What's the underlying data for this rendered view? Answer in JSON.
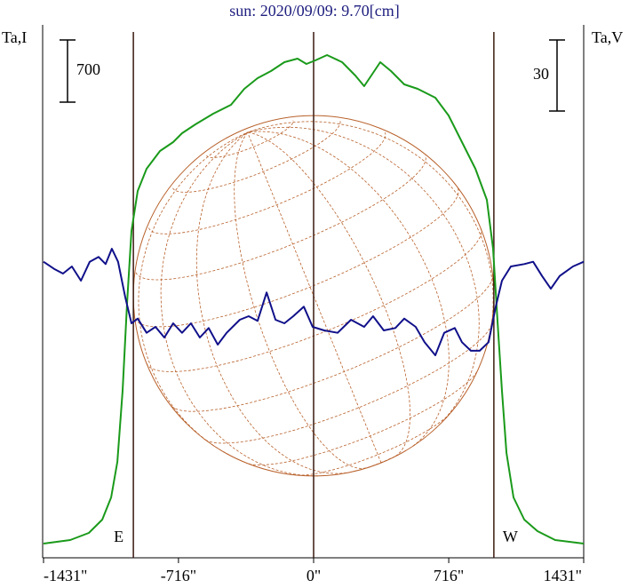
{
  "chart_data": {
    "type": "line",
    "title": "sun: 2020/09/09: 9.70[cm]",
    "xlim": [
      -1431,
      1431
    ],
    "xticks": [
      {
        "value": -1431,
        "label": "-1431\""
      },
      {
        "value": -716,
        "label": "-716\""
      },
      {
        "value": 0,
        "label": "0\""
      },
      {
        "value": 716,
        "label": "716\""
      },
      {
        "value": 1431,
        "label": "1431\""
      }
    ],
    "ylim": [
      0,
      6000
    ],
    "y2lim": [
      -100,
      125
    ],
    "scale_bars": [
      {
        "value": 700,
        "axis": "y"
      },
      {
        "value": 30,
        "axis": "y2"
      }
    ],
    "vlines": [
      -955,
      0,
      955
    ],
    "limb_labels": [
      "E",
      "W"
    ],
    "series": [
      {
        "name": "Ta,I",
        "color": "#1a9a1a",
        "axis": "y",
        "x": [
          -1431,
          -1290,
          -1191,
          -1120,
          -1073,
          -1040,
          -1012,
          -988,
          -965,
          -932,
          -885,
          -814,
          -744,
          -697,
          -626,
          -532,
          -438,
          -367,
          -297,
          -226,
          -155,
          -85,
          -38,
          9,
          71,
          151,
          221,
          268,
          353,
          410,
          480,
          551,
          645,
          715,
          786,
          857,
          918,
          951,
          974,
          998,
          1022,
          1059,
          1116,
          1186,
          1280,
          1431
        ],
        "values": [
          160,
          200,
          280,
          430,
          680,
          1080,
          1880,
          2880,
          3680,
          4130,
          4380,
          4580,
          4680,
          4780,
          4880,
          5000,
          5100,
          5280,
          5400,
          5480,
          5580,
          5620,
          5560,
          5600,
          5660,
          5580,
          5430,
          5310,
          5580,
          5480,
          5330,
          5280,
          5180,
          4980,
          4680,
          4380,
          4030,
          3480,
          2680,
          1880,
          1180,
          680,
          430,
          300,
          200,
          160
        ]
      },
      {
        "name": "Ta,V",
        "color": "#10108a",
        "axis": "y2",
        "x": [
          -1431,
          -1375,
          -1328,
          -1281,
          -1233,
          -1186,
          -1139,
          -1102,
          -1069,
          -1036,
          -998,
          -965,
          -932,
          -885,
          -838,
          -791,
          -744,
          -697,
          -650,
          -603,
          -556,
          -508,
          -461,
          -391,
          -344,
          -297,
          -249,
          -202,
          -155,
          -108,
          -52,
          -5,
          56,
          127,
          198,
          268,
          315,
          372,
          433,
          480,
          541,
          588,
          645,
          692,
          748,
          786,
          833,
          880,
          927,
          965,
          998,
          1045,
          1116,
          1163,
          1210,
          1257,
          1304,
          1374,
          1431
        ],
        "values": [
          25,
          22,
          20,
          23,
          17,
          25,
          27,
          24,
          30.5,
          25,
          10,
          -1,
          1,
          -5,
          -2.5,
          -7,
          -1,
          -5,
          -1,
          -7,
          -3,
          -10,
          -5,
          0.5,
          2,
          0,
          12,
          0.5,
          -1,
          2,
          6,
          -2.5,
          -4,
          -5,
          0.5,
          -2.5,
          2,
          -4,
          -3,
          1,
          -2.5,
          -9,
          -14.5,
          -5,
          -3,
          -9,
          -12.6,
          -12.6,
          -9,
          6,
          17,
          23,
          24,
          25,
          19,
          13.6,
          19,
          23,
          25
        ]
      }
    ]
  }
}
